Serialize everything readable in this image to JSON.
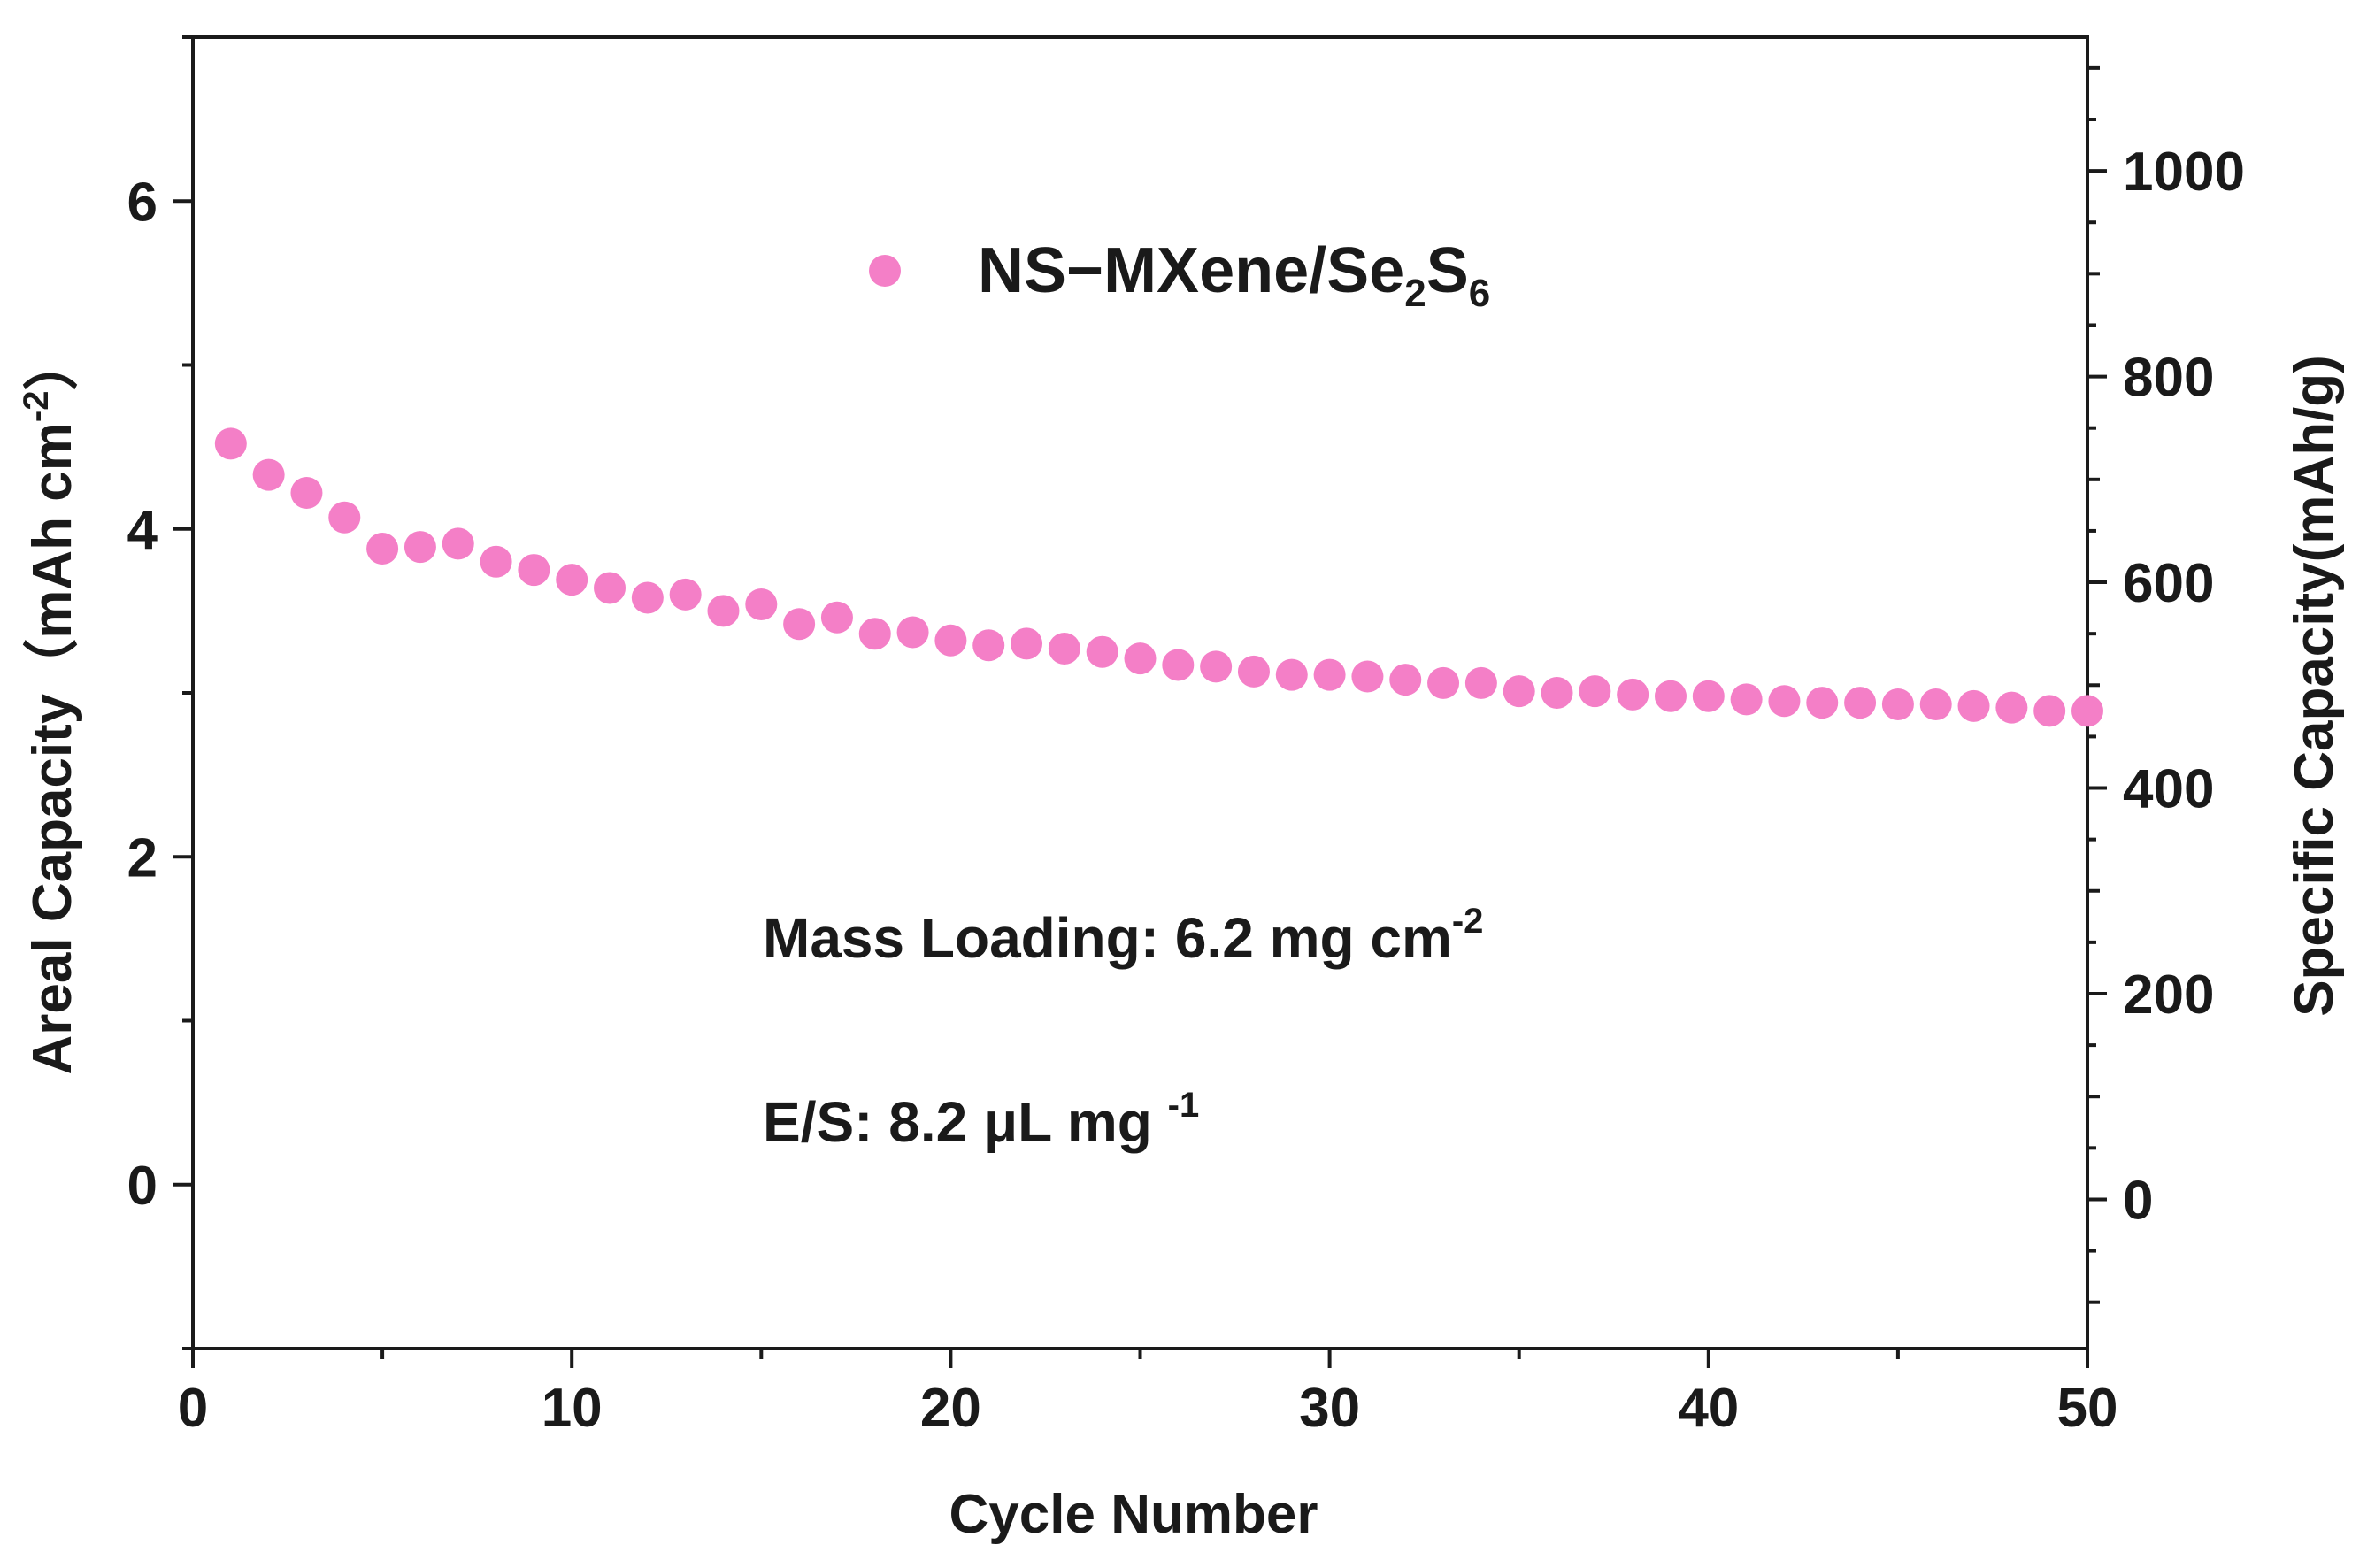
{
  "chart_data": {
    "type": "scatter",
    "title": "",
    "xlabel": "Cycle Number",
    "ylabel": "Areal Capacity（mAh cm-2）",
    "ylabel_parts": {
      "main": "Areal Capacity（mAh cm",
      "sup": "-2",
      "tail": "）"
    },
    "y2label": "Specific Capacity(mAh/g)",
    "xlim": [
      0,
      50
    ],
    "ylim": [
      -1,
      7
    ],
    "y2lim": [
      -145,
      1130
    ],
    "xticks": [
      "0",
      "10",
      "20",
      "30",
      "40",
      "50"
    ],
    "yticks": [
      "0",
      "2",
      "4",
      "6"
    ],
    "y2ticks": [
      "0",
      "200",
      "400",
      "600",
      "800",
      "1000"
    ],
    "legend_position": "top-center",
    "series": [
      {
        "name": "NS-MXene/Se2S6",
        "name_parts": {
          "main": "NS−MXene/Se",
          "sub1": "2",
          "mid": "S",
          "sub2": "6"
        },
        "color": "#f47fc7",
        "x": [
          1,
          2,
          3,
          4,
          5,
          6,
          7,
          8,
          9,
          10,
          11,
          12,
          13,
          14,
          15,
          16,
          17,
          18,
          19,
          20,
          21,
          22,
          23,
          24,
          25,
          26,
          27,
          28,
          29,
          30,
          31,
          32,
          33,
          34,
          35,
          36,
          37,
          38,
          39,
          40,
          41,
          42,
          43,
          44,
          45,
          46,
          47,
          48,
          49,
          50
        ],
        "y": [
          4.52,
          4.33,
          4.22,
          4.07,
          3.88,
          3.89,
          3.91,
          3.8,
          3.75,
          3.69,
          3.64,
          3.58,
          3.6,
          3.5,
          3.54,
          3.42,
          3.46,
          3.36,
          3.37,
          3.32,
          3.29,
          3.3,
          3.27,
          3.25,
          3.21,
          3.17,
          3.16,
          3.13,
          3.11,
          3.11,
          3.1,
          3.08,
          3.06,
          3.06,
          3.01,
          3.0,
          3.01,
          2.99,
          2.98,
          2.98,
          2.96,
          2.95,
          2.94,
          2.94,
          2.93,
          2.93,
          2.92,
          2.91,
          2.89,
          2.89
        ]
      }
    ],
    "annotations": [
      {
        "id": "mass",
        "main": "Mass Loading: 6.2 mg cm",
        "sup": "-2"
      },
      {
        "id": "es",
        "main": "E/S: 8.2 μL mg ",
        "sup": "-1"
      }
    ]
  }
}
